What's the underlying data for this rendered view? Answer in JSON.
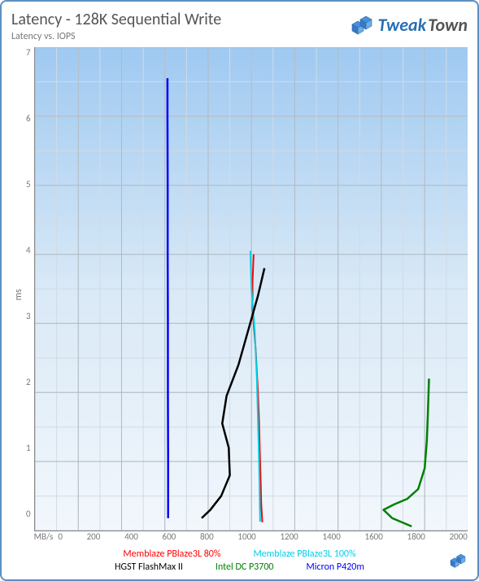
{
  "brand": {
    "word1": "Tweak",
    "word2": "Town"
  },
  "title": "Latency - 128K Sequential Write",
  "subtitle": "Latency vs. IOPS",
  "y_axis": {
    "label": "ms",
    "min": 0,
    "max": 7,
    "ticks": [
      0,
      1,
      2,
      3,
      4,
      5,
      6,
      7
    ]
  },
  "x_axis": {
    "label": "MB/s",
    "min": 0,
    "max": 2000,
    "ticks": [
      0,
      200,
      400,
      600,
      800,
      1000,
      1200,
      1400,
      1600,
      1800,
      2000
    ]
  },
  "plot": {
    "background_gradient": [
      "#9fc9f1",
      "#d9e9f6",
      "#f2f7fc"
    ],
    "grid_major_color": "#b0b9c2",
    "grid_minor_color": "#d2dbe3",
    "border_color": "#888888"
  },
  "legend_rows": [
    [
      {
        "label": "Memblaze PBlaze3L 80%",
        "color": "#ff0000"
      },
      {
        "label": "Memblaze PBlaze3L 100%",
        "color": "#00cfe6"
      }
    ],
    [
      {
        "label": "HGST FlashMax II",
        "color": "#000000"
      },
      {
        "label": "Intel DC P3700",
        "color": "#008000"
      },
      {
        "label": "Micron P420m",
        "color": "#0000ff"
      }
    ]
  ],
  "series": [
    {
      "name": "Memblaze PBlaze3L 80%",
      "color": "#ff0000",
      "line_width": 2,
      "points": [
        [
          1050,
          0.12
        ],
        [
          1045,
          0.4
        ],
        [
          1042,
          0.8
        ],
        [
          1038,
          1.2
        ],
        [
          1035,
          1.6
        ],
        [
          1030,
          2.0
        ],
        [
          1020,
          2.6
        ],
        [
          1005,
          3.2
        ],
        [
          1005,
          3.6
        ],
        [
          1010,
          4.0
        ]
      ]
    },
    {
      "name": "Memblaze PBlaze3L 100%",
      "color": "#00cfe6",
      "line_width": 2,
      "points": [
        [
          1040,
          0.13
        ],
        [
          1038,
          0.5
        ],
        [
          1035,
          1.0
        ],
        [
          1030,
          1.6
        ],
        [
          1025,
          2.2
        ],
        [
          1015,
          2.9
        ],
        [
          1000,
          3.5
        ],
        [
          995,
          4.05
        ]
      ]
    },
    {
      "name": "HGST FlashMax II",
      "color": "#000000",
      "line_width": 2.5,
      "points": [
        [
          770,
          0.18
        ],
        [
          810,
          0.3
        ],
        [
          860,
          0.5
        ],
        [
          900,
          0.8
        ],
        [
          895,
          1.2
        ],
        [
          865,
          1.55
        ],
        [
          885,
          1.95
        ],
        [
          940,
          2.4
        ],
        [
          985,
          2.9
        ],
        [
          1030,
          3.4
        ],
        [
          1060,
          3.8
        ]
      ]
    },
    {
      "name": "Intel DC P3700",
      "color": "#008000",
      "line_width": 2.5,
      "points": [
        [
          1740,
          0.06
        ],
        [
          1650,
          0.18
        ],
        [
          1610,
          0.3
        ],
        [
          1660,
          0.38
        ],
        [
          1720,
          0.46
        ],
        [
          1770,
          0.6
        ],
        [
          1800,
          0.9
        ],
        [
          1810,
          1.3
        ],
        [
          1815,
          1.7
        ],
        [
          1820,
          2.2
        ]
      ]
    },
    {
      "name": "Micron P420m",
      "color": "#0000ff",
      "line_width": 2.5,
      "points": [
        [
          615,
          0.18
        ],
        [
          615,
          1.0
        ],
        [
          614,
          2.0
        ],
        [
          614,
          3.0
        ],
        [
          613,
          4.0
        ],
        [
          613,
          5.0
        ],
        [
          612,
          6.0
        ],
        [
          612,
          6.55
        ]
      ]
    }
  ]
}
